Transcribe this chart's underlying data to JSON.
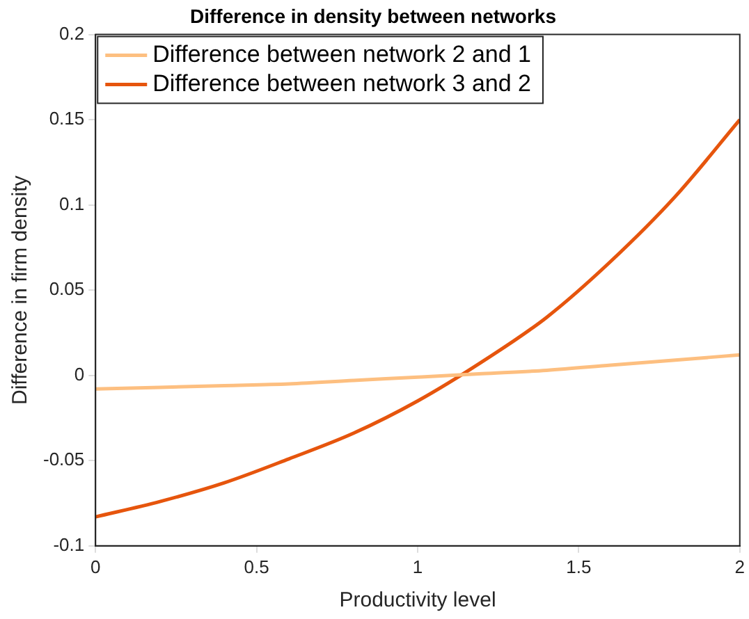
{
  "chart_data": {
    "type": "line",
    "title": "Difference in density between networks",
    "xlabel": "Productivity level",
    "ylabel": "Difference in firm density",
    "x": [
      0,
      0.2,
      0.4,
      0.6,
      0.8,
      1.0,
      1.2,
      1.4,
      1.6,
      1.8,
      2.0
    ],
    "series": [
      {
        "name": "Difference between network 2 and 1",
        "color": "#fdbf80",
        "values": [
          -0.008,
          -0.007,
          -0.006,
          -0.005,
          -0.003,
          -0.001,
          0.001,
          0.003,
          0.006,
          0.009,
          0.012
        ]
      },
      {
        "name": "Difference between network 3 and 2",
        "color": "#e6550d",
        "values": [
          -0.083,
          -0.074,
          -0.063,
          -0.049,
          -0.034,
          -0.015,
          0.008,
          0.034,
          0.067,
          0.105,
          0.15
        ]
      }
    ],
    "xlim": [
      0,
      2
    ],
    "xticks": [
      0,
      0.5,
      1,
      1.5,
      2
    ],
    "ylim": [
      -0.1,
      0.2
    ],
    "yticks": [
      -0.1,
      -0.05,
      0,
      0.05,
      0.1,
      0.15,
      0.2
    ],
    "grid": false,
    "legend": "top left",
    "marker": "none",
    "line_style": "solid"
  }
}
